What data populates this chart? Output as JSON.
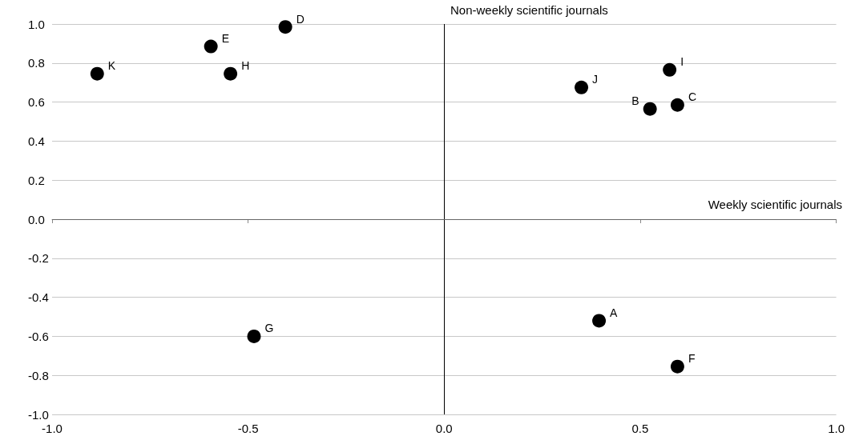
{
  "chart_data": {
    "type": "scatter",
    "series": [
      {
        "name": "A",
        "color": "#000000",
        "x": [
          0.395
        ],
        "values": [
          -0.52
        ]
      },
      {
        "name": "B",
        "color": "#000000",
        "x": [
          0.525
        ],
        "values": [
          0.565
        ]
      },
      {
        "name": "C",
        "color": "#000000",
        "x": [
          0.595
        ],
        "values": [
          0.585
        ]
      },
      {
        "name": "D",
        "color": "#000000",
        "x": [
          -0.405
        ],
        "values": [
          0.985
        ]
      },
      {
        "name": "E",
        "color": "#000000",
        "x": [
          -0.595
        ],
        "values": [
          0.885
        ]
      },
      {
        "name": "F",
        "color": "#000000",
        "x": [
          0.595
        ],
        "values": [
          -0.755
        ]
      },
      {
        "name": "G",
        "color": "#000000",
        "x": [
          -0.485
        ],
        "values": [
          -0.6
        ]
      },
      {
        "name": "H",
        "color": "#000000",
        "x": [
          -0.545
        ],
        "values": [
          0.745
        ]
      },
      {
        "name": "I",
        "color": "#000000",
        "x": [
          0.575
        ],
        "values": [
          0.765
        ]
      },
      {
        "name": "J",
        "color": "#000000",
        "x": [
          0.35
        ],
        "values": [
          0.675
        ]
      },
      {
        "name": "K",
        "color": "#000000",
        "x": [
          -0.885
        ],
        "values": [
          0.745
        ]
      }
    ],
    "xlim": [
      -1.0,
      1.0
    ],
    "xticks": [
      {
        "value": -1.0,
        "label": "-1.0"
      },
      {
        "value": -0.5,
        "label": "-0.5"
      },
      {
        "value": 0,
        "label": "0.0"
      },
      {
        "value": 0.5,
        "label": "0.5"
      },
      {
        "value": 1.0,
        "label": "1.0"
      }
    ],
    "ylim": [
      -1.0,
      1.0
    ],
    "yticks": [
      {
        "value": -1.0,
        "label": "-1.0"
      },
      {
        "value": -0.8,
        "label": "-0.8"
      },
      {
        "value": -0.6,
        "label": "-0.6"
      },
      {
        "value": -0.4,
        "label": "-0.4"
      },
      {
        "value": -0.2,
        "label": "-0.2"
      },
      {
        "value": 0,
        "label": "0.0"
      },
      {
        "value": 0.2,
        "label": "0.2"
      },
      {
        "value": 0.4,
        "label": "0.4"
      },
      {
        "value": 0.6,
        "label": "0.6"
      },
      {
        "value": 0.8,
        "label": "0.8"
      },
      {
        "value": 1.0,
        "label": "1.0"
      }
    ],
    "ref_lines": [
      {
        "axis": "x",
        "value": 0,
        "color": "#000000"
      },
      {
        "axis": "y",
        "value": 0,
        "color": "#666666"
      }
    ],
    "annotations": [
      "Non-weekly scientific journals",
      "Weekly scientific journals"
    ],
    "grid": "y",
    "legend": false,
    "marker": "circle"
  }
}
